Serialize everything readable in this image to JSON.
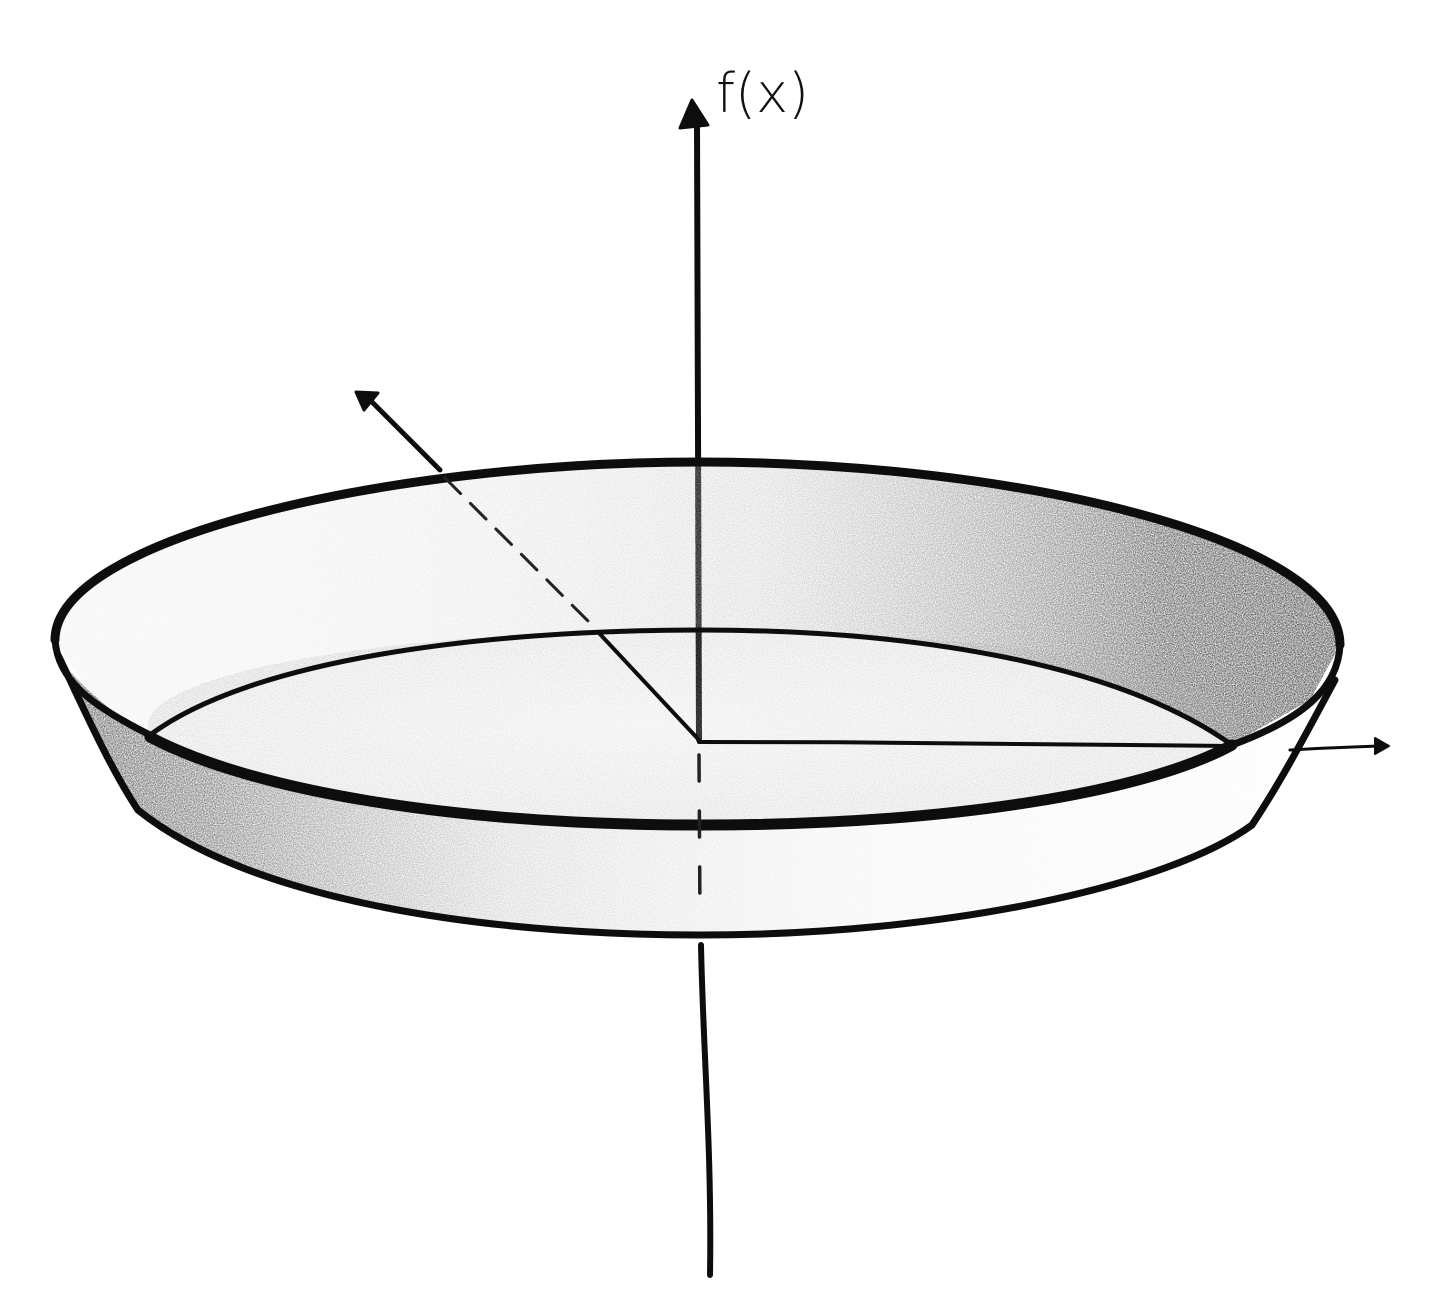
{
  "diagram": {
    "axis_label_vertical": "f(x)",
    "colors": {
      "ink": "#0d0d0d",
      "shade_dark": "#2a2a2a",
      "shade_light": "#bdbdbd",
      "paper": "#ffffff"
    }
  }
}
